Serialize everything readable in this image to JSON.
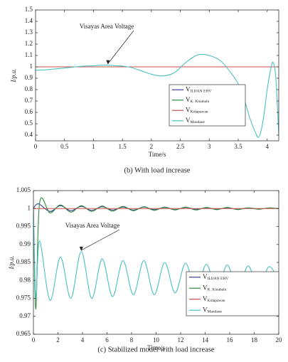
{
  "chart_data": [
    {
      "type": "line",
      "caption": "(b) With load increase",
      "xlabel": "Time/s",
      "ylabel": "I/p.u.",
      "annotation": {
        "text": "Visayas Area Voltage",
        "x": 1.25,
        "y": 1.015
      },
      "legend_prefix": "V",
      "legend": "right",
      "x": [
        0,
        0.2,
        0.4,
        0.6,
        0.8,
        1.0,
        1.2,
        1.4,
        1.6,
        1.8,
        2.0,
        2.2,
        2.4,
        2.6,
        2.8,
        3.0,
        3.2,
        3.4,
        3.5,
        3.6,
        3.7,
        3.8,
        3.85,
        3.9,
        3.95,
        4.0,
        4.05,
        4.1,
        4.15,
        4.2
      ],
      "series": [
        {
          "name": "ILIJAN EHV",
          "color": "#3b3f8f",
          "values": [
            1,
            1,
            1,
            1,
            1,
            1,
            1,
            1,
            1,
            1,
            1,
            1,
            1,
            1,
            1,
            1,
            1,
            1,
            1,
            1,
            1,
            1,
            1,
            1,
            1,
            1,
            1,
            1,
            1,
            1
          ]
        },
        {
          "name": "K. Kinabalu",
          "color": "#2e8b3e",
          "values": [
            1,
            1,
            1,
            1,
            1,
            1,
            1,
            1,
            1,
            1,
            1,
            1,
            1,
            1,
            1,
            1,
            1,
            1,
            1,
            1,
            1,
            1,
            1,
            1,
            1,
            1,
            1,
            1,
            1,
            1
          ]
        },
        {
          "name": "Kidapawan",
          "color": "#c8504a",
          "values": [
            1,
            1,
            1,
            1,
            1,
            1,
            1,
            1,
            1,
            1,
            1,
            1,
            1,
            1,
            1,
            1,
            1,
            1,
            1,
            1,
            1,
            1,
            1,
            1,
            1,
            1,
            1,
            1,
            1,
            1
          ]
        },
        {
          "name": "Mandaue",
          "color": "#4cc2c0",
          "values": [
            0.97,
            0.975,
            0.985,
            0.995,
            1.005,
            1.01,
            1.015,
            1.01,
            1.0,
            0.97,
            0.935,
            0.92,
            0.95,
            1.04,
            1.105,
            1.1,
            1.05,
            0.93,
            0.85,
            0.72,
            0.55,
            0.42,
            0.38,
            0.45,
            0.6,
            0.8,
            0.95,
            1.04,
            0.9,
            0.4
          ]
        }
      ],
      "xlim": [
        0,
        4.2
      ],
      "xticks": [
        0,
        0.5,
        1,
        1.5,
        2,
        2.5,
        3,
        3.5,
        4
      ],
      "ylim": [
        0.35,
        1.5
      ],
      "yticks": [
        0.4,
        0.5,
        0.6,
        0.7,
        0.8,
        0.9,
        1,
        1.1,
        1.2,
        1.3,
        1.4,
        1.5
      ]
    },
    {
      "type": "line",
      "caption": "(c) Stabilized model with load increase",
      "xlabel": "Time/s",
      "ylabel": "I/p.u.",
      "annotation": {
        "text": "Visayas Area Voltage",
        "x": 3.9,
        "y": 0.988
      },
      "legend_prefix": "V",
      "legend": "right",
      "x": [
        0,
        0.2,
        0.5,
        1.35,
        2.2,
        3.05,
        3.9,
        4.75,
        5.6,
        6.45,
        7.3,
        8.15,
        9.0,
        9.85,
        10.7,
        11.55,
        12.4,
        13.25,
        14.1,
        14.95,
        15.8,
        16.65,
        17.5,
        18.35,
        19.2,
        20.0
      ],
      "series": [
        {
          "name": "ILIJAN EHV",
          "color": "#3b3f8f",
          "values": [
            1.0,
            1.001,
            1.0012,
            0.9992,
            1.0008,
            0.9994,
            1.0006,
            0.9995,
            1.0005,
            0.9996,
            1.0004,
            0.9996,
            1.0004,
            0.9997,
            1.0003,
            0.9997,
            1.0003,
            0.9998,
            1.0002,
            0.9998,
            1.0002,
            0.9998,
            1.0002,
            0.9999,
            1.0001,
            1.0
          ]
        },
        {
          "name": "K. Kinabalu",
          "color": "#2e8b3e",
          "values": [
            1.0,
            0.972,
            1.0015,
            0.9988,
            1.001,
            0.999,
            1.0008,
            0.9992,
            1.0007,
            0.9993,
            1.0006,
            0.9994,
            1.0005,
            0.9995,
            1.0004,
            0.9996,
            1.0004,
            0.9996,
            1.0003,
            0.9997,
            1.0003,
            0.9997,
            1.0002,
            0.9998,
            1.0002,
            1.0
          ]
        },
        {
          "name": "Kidapawan",
          "color": "#c8504a",
          "values": [
            1,
            1,
            1,
            1,
            1,
            1,
            1,
            1,
            1,
            1,
            1,
            1,
            1,
            1,
            1,
            1,
            1,
            1,
            1,
            1,
            1,
            1,
            1,
            1,
            1,
            1
          ]
        },
        {
          "name": "Mandaue",
          "color": "#4cc2c0",
          "values": [
            1.0,
            0.975,
            0.991,
            0.9745,
            0.9865,
            0.975,
            0.988,
            0.975,
            0.986,
            0.9755,
            0.9855,
            0.976,
            0.9855,
            0.976,
            0.985,
            0.9765,
            0.9848,
            0.977,
            0.9845,
            0.9772,
            0.9843,
            0.9775,
            0.984,
            0.978,
            0.9838,
            0.98
          ]
        }
      ],
      "xlim": [
        0,
        20
      ],
      "xticks": [
        0,
        2,
        4,
        6,
        8,
        10,
        12,
        14,
        16,
        18,
        20
      ],
      "ylim": [
        0.965,
        1.005
      ],
      "yticks": [
        0.965,
        0.97,
        0.975,
        0.98,
        0.985,
        0.99,
        0.995,
        1,
        1.005
      ]
    }
  ]
}
